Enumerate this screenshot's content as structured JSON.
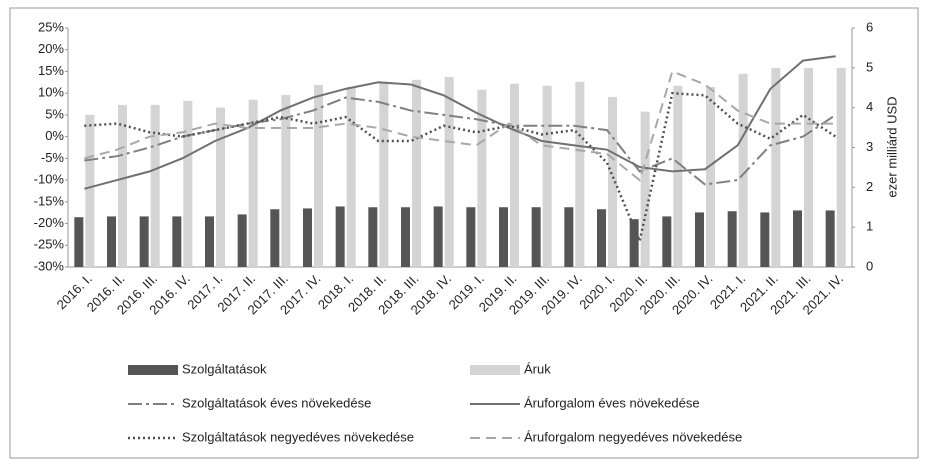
{
  "chart_data": {
    "type": "bar",
    "categories": [
      "2016. I.",
      "2016. II.",
      "2016. III.",
      "2016. IV.",
      "2017. I.",
      "2017. II.",
      "2017. III.",
      "2017. IV.",
      "2018. I.",
      "2018. II.",
      "2018. III.",
      "2018. IV.",
      "2019. I.",
      "2019. II.",
      "2019. III.",
      "2019. IV.",
      "2020. I.",
      "2020. II.",
      "2020. III.",
      "2020. IV.",
      "2021. I.",
      "2021. II.",
      "2021. III.",
      "2021. IV."
    ],
    "ylim": [
      -30,
      25
    ],
    "yticks": [
      {
        "value": -30,
        "label": "-30%"
      },
      {
        "value": -25,
        "label": "-25%"
      },
      {
        "value": -20,
        "label": "-20%"
      },
      {
        "value": -15,
        "label": "-15%"
      },
      {
        "value": -10,
        "label": "-10%"
      },
      {
        "value": -5,
        "label": "-5%"
      },
      {
        "value": 0,
        "label": "0%"
      },
      {
        "value": 5,
        "label": "5%"
      },
      {
        "value": 10,
        "label": "10%"
      },
      {
        "value": 15,
        "label": "15%"
      },
      {
        "value": 20,
        "label": "20%"
      },
      {
        "value": 25,
        "label": "25%"
      }
    ],
    "y2lim": [
      0,
      6
    ],
    "y2ticks": [
      0,
      1,
      2,
      3,
      4,
      5,
      6
    ],
    "y2_label": "ezer milliárd USD",
    "series": [
      {
        "name": "Szolgáltatások",
        "type": "bar",
        "axis": "y2",
        "color": "#555555",
        "values": [
          1.25,
          1.27,
          1.27,
          1.27,
          1.27,
          1.32,
          1.45,
          1.47,
          1.52,
          1.5,
          1.5,
          1.52,
          1.5,
          1.5,
          1.5,
          1.5,
          1.45,
          1.2,
          1.27,
          1.37,
          1.4,
          1.37,
          1.42,
          1.42
        ]
      },
      {
        "name": "Áruk",
        "type": "bar",
        "axis": "y2",
        "color": "#d4d4d4",
        "values": [
          3.82,
          4.07,
          4.07,
          4.17,
          4.0,
          4.2,
          4.32,
          4.57,
          4.52,
          4.65,
          4.7,
          4.77,
          4.45,
          4.6,
          4.55,
          4.65,
          4.27,
          3.9,
          4.55,
          4.52,
          4.85,
          5.0,
          5.0,
          5.0
        ]
      },
      {
        "name": "Szolgáltatások éves növekedése",
        "type": "line",
        "dash": "dash-dot",
        "color": "#808080",
        "values": [
          -5.5,
          -4.5,
          -2.5,
          0,
          1.5,
          3,
          4,
          6,
          9,
          8,
          6,
          5,
          4,
          2.5,
          2.5,
          2.5,
          1.5,
          -8,
          -5,
          -11,
          -10,
          -2,
          0,
          5
        ]
      },
      {
        "name": "Áruforgalom éves növekedése",
        "type": "line",
        "dash": "solid",
        "color": "#707070",
        "values": [
          -12,
          -10,
          -8,
          -5,
          -1,
          2,
          6,
          9,
          11,
          12.5,
          12,
          9.5,
          5.5,
          2,
          -1,
          -2,
          -3,
          -7,
          -8,
          -7.5,
          -2,
          11,
          17.5,
          18.5
        ]
      },
      {
        "name": "Szolgáltatások negyedéves növekedése",
        "type": "line",
        "dash": "dotted",
        "color": "#505050",
        "values": [
          2.5,
          3,
          1,
          0,
          1.5,
          3,
          4.5,
          3,
          4.5,
          -1,
          -1,
          2.5,
          1,
          2.5,
          0.5,
          1.5,
          -6,
          -24,
          10,
          9.5,
          3,
          -0.5,
          5,
          0
        ]
      },
      {
        "name": "Áruforgalom negyedéves növekedése",
        "type": "line",
        "dash": "dashed",
        "color": "#a8a8a8",
        "values": [
          -5,
          -3,
          0,
          1,
          3,
          2,
          2,
          2,
          3,
          2,
          0,
          -1,
          -2,
          3,
          -2,
          -3,
          -4,
          -10,
          15,
          12,
          6,
          3,
          3,
          3
        ]
      }
    ]
  }
}
